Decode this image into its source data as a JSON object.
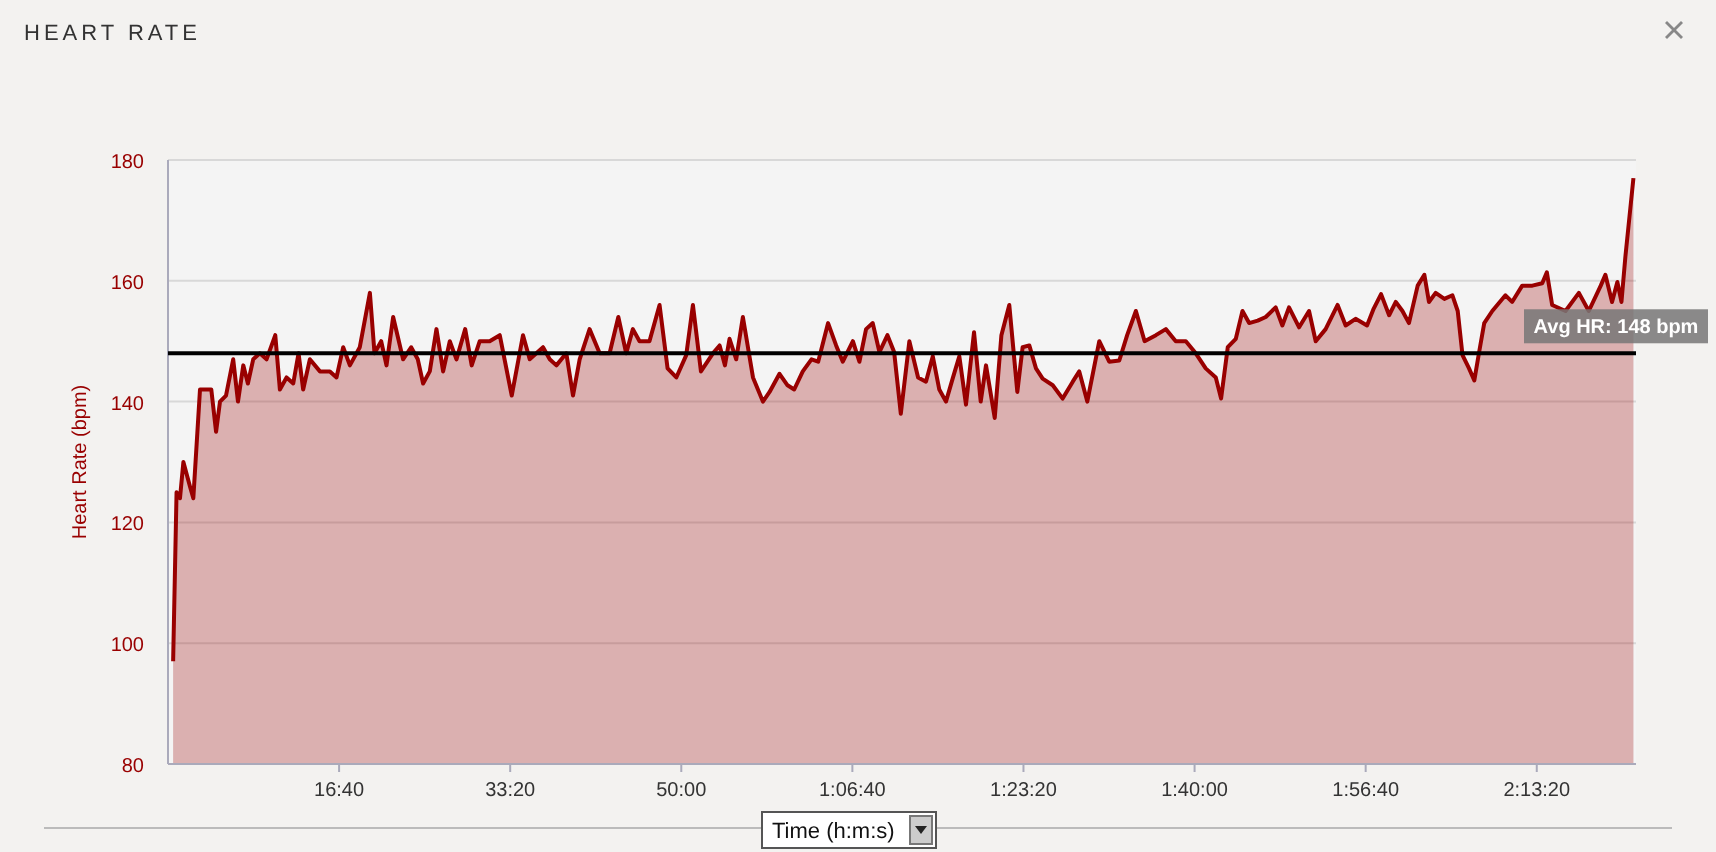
{
  "chart_data": {
    "type": "area",
    "title": "HEART RATE",
    "xlabel": "Time (h:m:s)",
    "ylabel": "Heart Rate (bpm)",
    "xlim": [
      0,
      8580
    ],
    "ylim": [
      80,
      180
    ],
    "xticks": [
      {
        "value": 1000,
        "label": "16:40"
      },
      {
        "value": 2000,
        "label": "33:20"
      },
      {
        "value": 3000,
        "label": "50:00"
      },
      {
        "value": 4000,
        "label": "1:06:40"
      },
      {
        "value": 5000,
        "label": "1:23:20"
      },
      {
        "value": 6000,
        "label": "1:40:00"
      },
      {
        "value": 7000,
        "label": "1:56:40"
      },
      {
        "value": 8000,
        "label": "2:13:20"
      }
    ],
    "yticks": [
      80,
      100,
      120,
      140,
      160,
      180
    ],
    "grid": "y",
    "marker": "none",
    "line_style": "solid",
    "ref_lines": [
      {
        "axis": "y",
        "value": 148,
        "label": "Avg HR: 148 bpm",
        "color": "#000000"
      }
    ],
    "series": [
      {
        "color": "#990000",
        "x": [
          30,
          50,
          70,
          90,
          128,
          148,
          187,
          226,
          253,
          281,
          304,
          339,
          381,
          409,
          440,
          467,
          498,
          537,
          576,
          627,
          654,
          693,
          732,
          763,
          790,
          829,
          888,
          946,
          985,
          1024,
          1063,
          1121,
          1180,
          1207,
          1246,
          1277,
          1316,
          1374,
          1421,
          1460,
          1491,
          1530,
          1569,
          1608,
          1647,
          1686,
          1737,
          1775,
          1822,
          1880,
          1939,
          2009,
          2075,
          2114,
          2192,
          2231,
          2270,
          2328,
          2367,
          2406,
          2464,
          2523,
          2581,
          2632,
          2678,
          2717,
          2756,
          2814,
          2873,
          2920,
          2971,
          3029,
          3068,
          3115,
          3185,
          3224,
          3255,
          3282,
          3321,
          3360,
          3419,
          3477,
          3516,
          3574,
          3621,
          3660,
          3710,
          3761,
          3800,
          3858,
          3905,
          3944,
          4003,
          4041,
          4080,
          4119,
          4158,
          4205,
          4244,
          4283,
          4333,
          4384,
          4430,
          4470,
          4508,
          4547,
          4586,
          4625,
          4664,
          4711,
          4750,
          4781,
          4832,
          4871,
          4917,
          4964,
          4995,
          5034,
          5073,
          5112,
          5171,
          5229,
          5288,
          5326,
          5373,
          5443,
          5501,
          5560,
          5606,
          5657,
          5708,
          5774,
          5832,
          5890,
          5949,
          6007,
          6065,
          6124,
          6155,
          6194,
          6241,
          6280,
          6319,
          6369,
          6416,
          6474,
          6513,
          6552,
          6611,
          6669,
          6708,
          6766,
          6836,
          6883,
          6941,
          7008,
          7047,
          7090,
          7137,
          7176,
          7215,
          7253,
          7304,
          7343,
          7370,
          7409,
          7460,
          7507,
          7538,
          7566,
          7604,
          7635,
          7662,
          7693,
          7740,
          7817,
          7856,
          7915,
          7974,
          8032,
          8059,
          8090,
          8168,
          8246,
          8304,
          8374,
          8401,
          8440,
          8471,
          8495,
          8518,
          8565
        ],
        "values": [
          97,
          125,
          124,
          130,
          126,
          124,
          142,
          142,
          142,
          135,
          140,
          141,
          147,
          140,
          146,
          143,
          147,
          148,
          147,
          151,
          142,
          144,
          143,
          148,
          142,
          147,
          145,
          145,
          144,
          149,
          146,
          149,
          158,
          148,
          150,
          146,
          154,
          147,
          149,
          147,
          143,
          145,
          152,
          145,
          150,
          147,
          152,
          146,
          150,
          150,
          151,
          141,
          151,
          147,
          149,
          147,
          146,
          148,
          141,
          147,
          152,
          148,
          148,
          154,
          148,
          152,
          150,
          150,
          156,
          145.5,
          144,
          147.7,
          156,
          145,
          148,
          149.3,
          146,
          150.4,
          147,
          154,
          144,
          140,
          141.6,
          144.6,
          142.7,
          142,
          145,
          147,
          146.6,
          153,
          149.3,
          146.6,
          150,
          146.6,
          152,
          153,
          148.2,
          151,
          148.2,
          138,
          150,
          144,
          143.3,
          147.5,
          142,
          140,
          143.8,
          147.5,
          139.5,
          151.5,
          140,
          146,
          137.3,
          151,
          156,
          141.6,
          149,
          149.3,
          145.5,
          143.8,
          142.7,
          140.5,
          143.3,
          145,
          140,
          150,
          146.6,
          146.8,
          151,
          155,
          150,
          151,
          152,
          150,
          150,
          148,
          145.5,
          144,
          140.5,
          149,
          150.4,
          155,
          153,
          153.4,
          154,
          155.6,
          152.6,
          155.6,
          152.3,
          155,
          150,
          152,
          156,
          152.6,
          153.7,
          152.6,
          155.4,
          157.8,
          154.3,
          156.5,
          155,
          153,
          159.2,
          161,
          156.5,
          158,
          157,
          157.6,
          155,
          147.7,
          145.5,
          143.5,
          148,
          153,
          155,
          157.6,
          156.5,
          159.2,
          159.2,
          159.6,
          161.4,
          156,
          155,
          158,
          155,
          159.2,
          161,
          156.5,
          159.8,
          156.5,
          164,
          177
        ]
      }
    ]
  }
}
